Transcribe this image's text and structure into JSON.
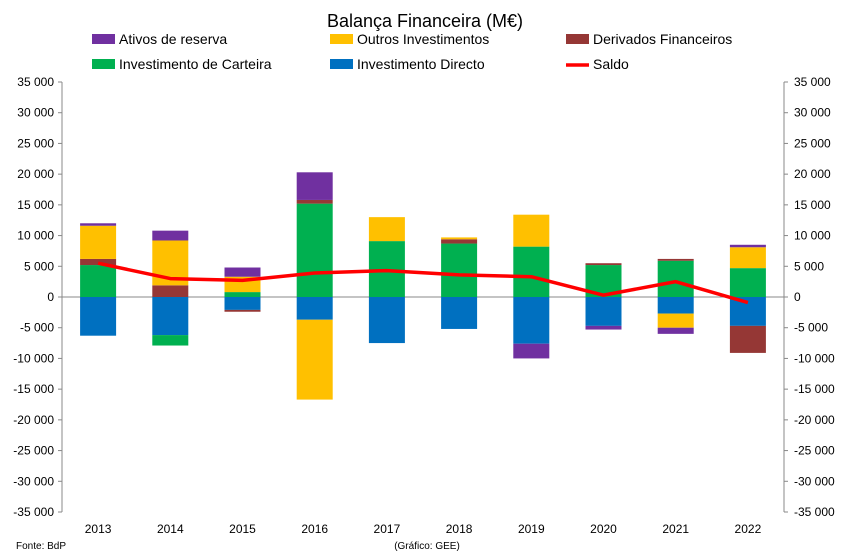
{
  "chart_data": {
    "type": "bar",
    "title": "Balança Financeira (M€)",
    "categories": [
      "2013",
      "2014",
      "2015",
      "2016",
      "2017",
      "2018",
      "2019",
      "2020",
      "2021",
      "2022"
    ],
    "series": [
      {
        "name": "Investimento Directo",
        "color": "#0070C0",
        "values": [
          -6300,
          -6200,
          -2100,
          -3700,
          -7500,
          -5200,
          -7600,
          -4700,
          -2700,
          -4700
        ]
      },
      {
        "name": "Investimento de Carteira",
        "color": "#00B050",
        "values": [
          5200,
          -1700,
          800,
          15200,
          9100,
          8700,
          8200,
          5200,
          5900,
          4700
        ]
      },
      {
        "name": "Derivados Financeiros",
        "color": "#953735",
        "values": [
          1000,
          1900,
          -300,
          600,
          0,
          700,
          0,
          300,
          300,
          -4400
        ]
      },
      {
        "name": "Outros Investimentos",
        "color": "#FFC000",
        "values": [
          5400,
          7300,
          2500,
          -13000,
          3900,
          300,
          5200,
          0,
          -2300,
          3400
        ]
      },
      {
        "name": "Ativos de reserva",
        "color": "#7030A0",
        "values": [
          400,
          1600,
          1500,
          4500,
          0,
          0,
          -2400,
          -600,
          -1000,
          400
        ]
      }
    ],
    "line": {
      "name": "Saldo",
      "color": "#FF0000",
      "values": [
        5500,
        3000,
        2700,
        3900,
        4300,
        3600,
        3300,
        300,
        2500,
        -900
      ]
    },
    "ylim": [
      -35000,
      35000
    ],
    "yticks": [
      "-35 000",
      "-30 000",
      "-25 000",
      "-20 000",
      "-15 000",
      "-10 000",
      "-5 000",
      "0",
      "5 000",
      "10 000",
      "15 000",
      "20 000",
      "25 000",
      "30 000",
      "35 000"
    ],
    "ytick_values": [
      -35000,
      -30000,
      -25000,
      -20000,
      -15000,
      -10000,
      -5000,
      0,
      5000,
      10000,
      15000,
      20000,
      25000,
      30000,
      35000
    ],
    "legend": [
      {
        "label": "Ativos de reserva",
        "color": "#7030A0",
        "kind": "box"
      },
      {
        "label": "Outros Investimentos",
        "color": "#FFC000",
        "kind": "box"
      },
      {
        "label": "Derivados Financeiros",
        "color": "#953735",
        "kind": "box"
      },
      {
        "label": "Investimento de Carteira",
        "color": "#00B050",
        "kind": "box"
      },
      {
        "label": "Investimento Directo",
        "color": "#0070C0",
        "kind": "box"
      },
      {
        "label": "Saldo",
        "color": "#FF0000",
        "kind": "line"
      }
    ],
    "legend_position": "top",
    "grid": false,
    "source_left": "Fonte: BdP",
    "source_center": "(Gráfico: GEE)"
  }
}
